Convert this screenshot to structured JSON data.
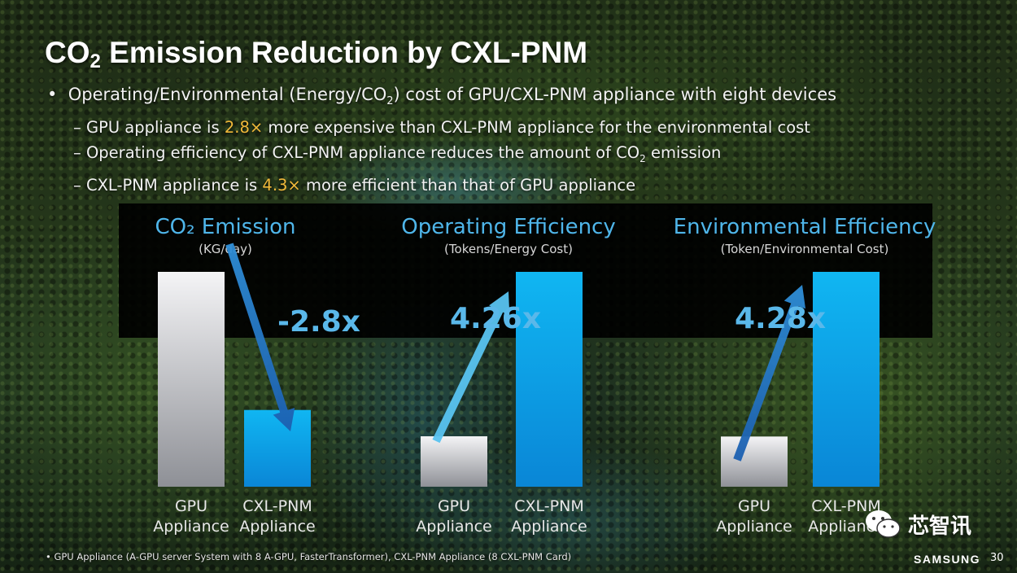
{
  "slide": {
    "title": {
      "prefix": "CO",
      "sub": "2",
      "suffix": " Emission Reduction by CXL-PNM"
    },
    "bullet": {
      "prefix": "Operating/Environmental (Energy/CO",
      "sub": "2",
      "suffix": ") cost of GPU/CXL-PNM appliance with eight devices"
    },
    "subbullets": [
      {
        "pre": "GPU appliance is ",
        "highlight": "2.8×",
        "post": " more expensive than CXL-PNM appliance for the environmental cost"
      },
      {
        "pre": "Operating efficiency of CXL-PNM appliance reduces the amount of CO",
        "sub": "2",
        "post": " emission"
      },
      {
        "pre": "CXL-PNM appliance is ",
        "highlight": "4.3×",
        "post": " more efficient than that of GPU appliance"
      }
    ],
    "footnote": "• GPU Appliance (A-GPU server System with 8 A-GPU, FasterTransformer), CXL-PNM Appliance (8 CXL-PNM Card)",
    "brand": "SAMSUNG",
    "page_number": "30",
    "watermark": {
      "text": "芯智讯",
      "icon": "wechat-icon"
    },
    "colors": {
      "highlight": "#f1b93a",
      "chart_title": "#4fb6ea",
      "multiplier": "#5ab8ea",
      "gpu_bar": "#c9c9cc",
      "cxl_bar": "#0aa4e6"
    }
  },
  "chart_data": [
    {
      "type": "bar",
      "title": "CO₂ Emission",
      "subtitle": "(KG/day)",
      "categories": [
        "GPU\nAppliance",
        "CXL-PNM\nAppliance"
      ],
      "values": [
        2.8,
        1.0
      ],
      "ylim": [
        0,
        2.8
      ],
      "annotation": "-2.8x",
      "arrow": "down",
      "grid": false
    },
    {
      "type": "bar",
      "title": "Operating Efficiency",
      "subtitle": "(Tokens/Energy Cost)",
      "categories": [
        "GPU\nAppliance",
        "CXL-PNM\nAppliance"
      ],
      "values": [
        1.0,
        4.26
      ],
      "ylim": [
        0,
        4.26
      ],
      "annotation": "4.26x",
      "arrow": "up",
      "grid": false
    },
    {
      "type": "bar",
      "title": "Environmental Efficiency",
      "subtitle": "(Token/Environmental Cost)",
      "categories": [
        "GPU\nAppliance",
        "CXL-PNM\nAppliance"
      ],
      "values": [
        1.0,
        4.28
      ],
      "ylim": [
        0,
        4.28
      ],
      "annotation": "4.28x",
      "arrow": "up",
      "grid": false
    }
  ]
}
